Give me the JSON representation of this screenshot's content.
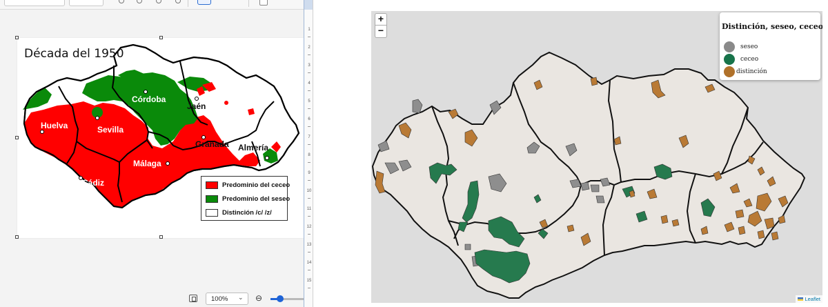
{
  "left_panel": {
    "document": {
      "title": "Década del 1950",
      "cities": [
        "Huelva",
        "Sevilla",
        "Córdoba",
        "Jaén",
        "Granada",
        "Almería",
        "Málaga",
        "Cádiz"
      ],
      "legend": [
        {
          "label": "Predominio del ceceo",
          "color": "#ff0000"
        },
        {
          "label": "Predominio del seseo",
          "color": "#0a8a0a"
        },
        {
          "label": "Distinción /c/ /z/",
          "color": "#ffffff"
        }
      ]
    },
    "statusbar": {
      "zoom_value": "100%",
      "zoom_slider_fraction": 0.2
    },
    "ruler_numbers": [
      "1",
      "2",
      "3",
      "4",
      "5",
      "6",
      "7",
      "8",
      "9",
      "10",
      "11",
      "12",
      "13",
      "14",
      "15"
    ]
  },
  "right_panel": {
    "zoom_in_label": "+",
    "zoom_out_label": "−",
    "legend": {
      "title": "Distinción, seseo, ceceo",
      "items": [
        {
          "label": "seseo",
          "color": "#8a8a8a"
        },
        {
          "label": "ceceo",
          "color": "#17734a"
        },
        {
          "label": "distinción",
          "color": "#b0712a"
        }
      ]
    },
    "attribution": "Leaflet"
  }
}
